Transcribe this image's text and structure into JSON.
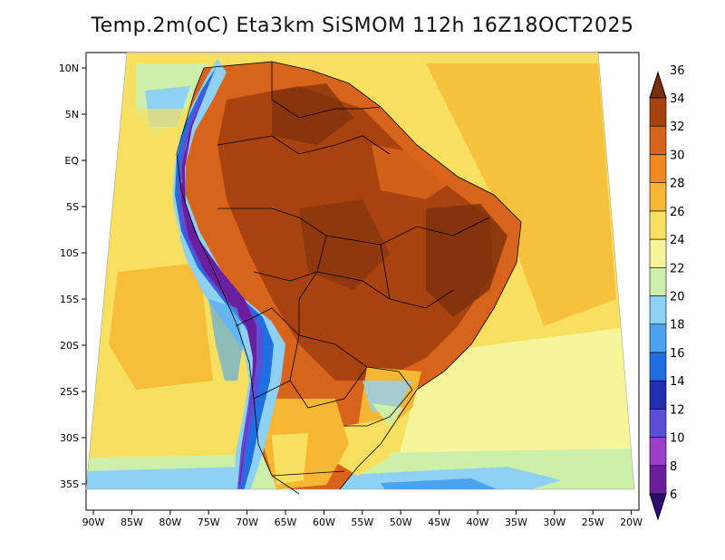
{
  "title": "Temp.2m(oC) Eta3km SiSMOM 112h 16Z18OCT2025",
  "map": {
    "lon_labels": [
      "90W",
      "85W",
      "80W",
      "75W",
      "70W",
      "65W",
      "60W",
      "55W",
      "50W",
      "45W",
      "40W",
      "35W",
      "30W",
      "25W",
      "20W"
    ],
    "lat_labels": [
      "10N",
      "5N",
      "EQ",
      "5S",
      "10S",
      "15S",
      "20S",
      "25S",
      "30S",
      "35S"
    ]
  },
  "colorbar": {
    "levels": [
      "6",
      "8",
      "10",
      "12",
      "14",
      "16",
      "18",
      "20",
      "22",
      "24",
      "26",
      "28",
      "30",
      "32",
      "34",
      "36"
    ],
    "colors": [
      "#2b0f6e",
      "#6a1f9e",
      "#9b3ec8",
      "#5a4fd6",
      "#1f2fb0",
      "#1e6fe0",
      "#4aa3f0",
      "#8fd0f5",
      "#cdf0a8",
      "#f7f59a",
      "#f7e060",
      "#f7b733",
      "#f08a20",
      "#d8631a",
      "#a8420e",
      "#7a2f0c"
    ]
  }
}
